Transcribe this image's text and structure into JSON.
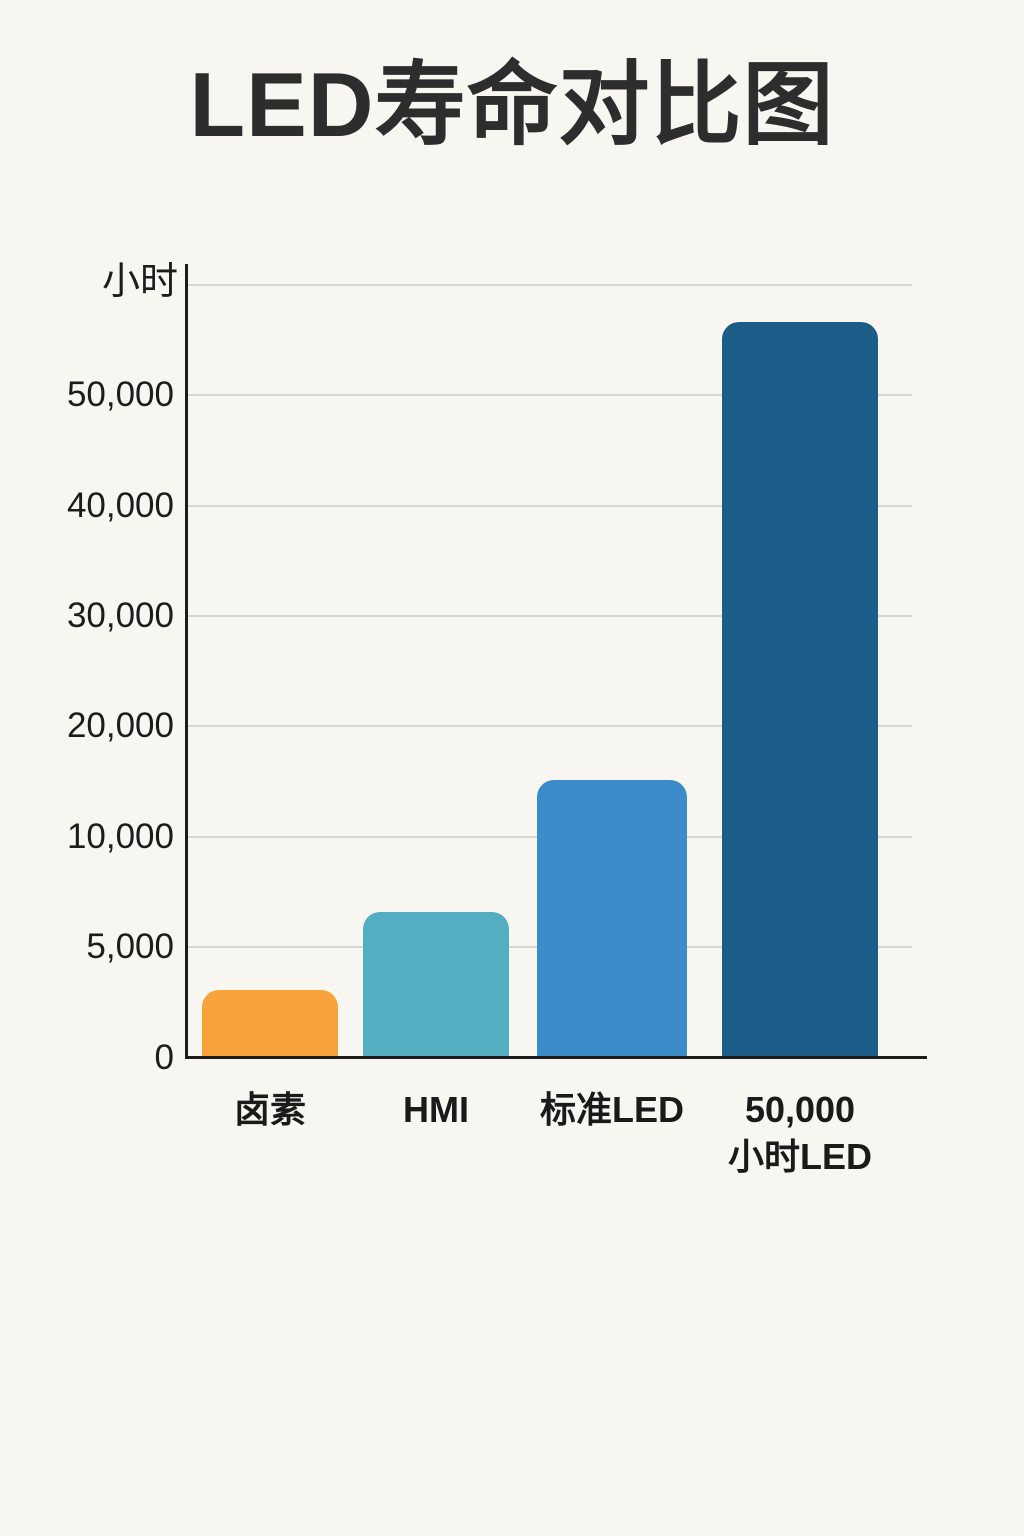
{
  "page": {
    "background_color": "#F8F6F1"
  },
  "title": "LED寿命对比图",
  "chart_data": {
    "type": "bar",
    "title": "LED寿命对比图",
    "xlabel": "",
    "ylabel": "小时",
    "y_axis": {
      "unit_label": "小时",
      "tick_labels": [
        "0",
        "5,000",
        "10,000",
        "20,000",
        "30,000",
        "40,000",
        "50,000",
        ""
      ],
      "tick_values": [
        0,
        5000,
        10000,
        20000,
        30000,
        40000,
        50000,
        60000
      ],
      "scale_note": "non-linear axis: equal visual spacing per tick (5,000-hour steps up to 10,000, then 10,000-hour steps); topmost gridline unlabeled",
      "grid": true,
      "ylim": [
        0,
        60000
      ]
    },
    "categories": [
      "卤素",
      "HMI",
      "标准LED",
      "50,000小时LED"
    ],
    "values": [
      3000,
      6500,
      15000,
      56500
    ],
    "bars": [
      {
        "name": "halogen",
        "label_lines": [
          "卤素"
        ],
        "value": 3000,
        "color": "#F8A23C"
      },
      {
        "name": "hmi",
        "label_lines": [
          "HMI"
        ],
        "value": 6500,
        "color": "#54AEC1"
      },
      {
        "name": "standard-led",
        "label_lines": [
          "标准LED"
        ],
        "value": 15000,
        "color": "#3C8CCA"
      },
      {
        "name": "led-50000-hours",
        "label_lines": [
          "50,000",
          "小时LED"
        ],
        "value": 56500,
        "color": "#1B5C88"
      }
    ],
    "legend_position": "none"
  },
  "colors": {
    "axis": "#1C1C1C",
    "gridline": "#D9D7D2",
    "title_text": "#2D2D2D",
    "label_text": "#1C1C1C"
  }
}
